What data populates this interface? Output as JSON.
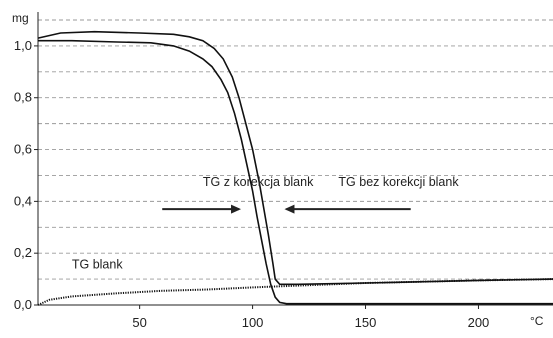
{
  "chart_data": {
    "type": "line",
    "title": "",
    "xlabel": "",
    "ylabel": "",
    "y_unit": "mg",
    "x_unit": "°C",
    "xlim": [
      5,
      233
    ],
    "ylim": [
      0,
      1.1
    ],
    "x_ticks": [
      {
        "value": 50,
        "label": "50"
      },
      {
        "value": 100,
        "label": "100"
      },
      {
        "value": 150,
        "label": "150"
      },
      {
        "value": 200,
        "label": "200"
      }
    ],
    "y_ticks": [
      {
        "value": 0.0,
        "label": "0,0"
      },
      {
        "value": 0.2,
        "label": "0,2"
      },
      {
        "value": 0.4,
        "label": "0,4"
      },
      {
        "value": 0.6,
        "label": "0,6"
      },
      {
        "value": 0.8,
        "label": "0,8"
      },
      {
        "value": 1.0,
        "label": "1,0"
      }
    ],
    "grid": {
      "horizontal": true,
      "vertical": false,
      "style": "dashed",
      "minor_horizontal_every": 0.1
    },
    "series": [
      {
        "name": "TG z korekcja blank",
        "color": "#111111",
        "points": [
          [
            5,
            1.02
          ],
          [
            20,
            1.02
          ],
          [
            40,
            1.015
          ],
          [
            55,
            1.012
          ],
          [
            65,
            1.0
          ],
          [
            72,
            0.98
          ],
          [
            78,
            0.95
          ],
          [
            82,
            0.92
          ],
          [
            86,
            0.87
          ],
          [
            89,
            0.82
          ],
          [
            92,
            0.74
          ],
          [
            95,
            0.64
          ],
          [
            98,
            0.52
          ],
          [
            100,
            0.44
          ],
          [
            102,
            0.34
          ],
          [
            104,
            0.25
          ],
          [
            106,
            0.16
          ],
          [
            108,
            0.08
          ],
          [
            110,
            0.03
          ],
          [
            112,
            0.01
          ],
          [
            115,
            0.005
          ],
          [
            233,
            0.005
          ]
        ]
      },
      {
        "name": "TG bez korekcji blank",
        "color": "#111111",
        "points": [
          [
            5,
            1.03
          ],
          [
            15,
            1.05
          ],
          [
            30,
            1.055
          ],
          [
            50,
            1.05
          ],
          [
            65,
            1.045
          ],
          [
            72,
            1.035
          ],
          [
            78,
            1.02
          ],
          [
            83,
            0.99
          ],
          [
            87,
            0.95
          ],
          [
            91,
            0.88
          ],
          [
            94,
            0.8
          ],
          [
            97,
            0.7
          ],
          [
            100,
            0.6
          ],
          [
            103,
            0.47
          ],
          [
            105,
            0.37
          ],
          [
            107,
            0.27
          ],
          [
            109,
            0.16
          ],
          [
            110,
            0.1
          ],
          [
            112,
            0.08
          ],
          [
            120,
            0.08
          ],
          [
            150,
            0.085
          ],
          [
            200,
            0.095
          ],
          [
            233,
            0.1
          ]
        ]
      },
      {
        "name": "TG blank",
        "color": "#111111",
        "points": [
          [
            5,
            0.0
          ],
          [
            10,
            0.02
          ],
          [
            20,
            0.033
          ],
          [
            40,
            0.045
          ],
          [
            60,
            0.055
          ],
          [
            80,
            0.06
          ],
          [
            100,
            0.068
          ],
          [
            120,
            0.075
          ],
          [
            150,
            0.085
          ],
          [
            200,
            0.095
          ],
          [
            233,
            0.1
          ]
        ]
      }
    ],
    "annotations": [
      {
        "text": "TG z korekcja blank",
        "x": 78,
        "y": 0.46,
        "arrow_from": [
          60,
          0.37
        ],
        "arrow_to": [
          94,
          0.37
        ]
      },
      {
        "text": "TG bez korekcji blank",
        "x": 138,
        "y": 0.46,
        "arrow_from": [
          170,
          0.37
        ],
        "arrow_to": [
          115,
          0.37
        ]
      },
      {
        "text": "TG blank",
        "x": 20,
        "y": 0.14
      }
    ]
  }
}
